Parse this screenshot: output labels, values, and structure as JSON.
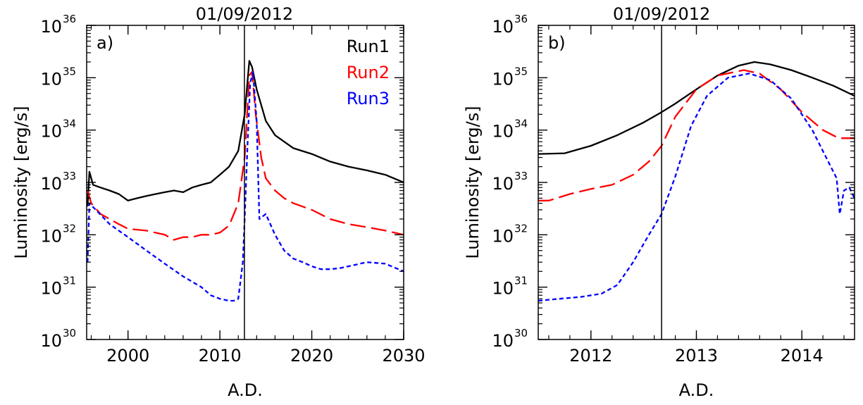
{
  "chart_data": [
    {
      "type": "line",
      "panel_label": "a)",
      "marker_label": "01/09/2012",
      "marker_x": 2012.67,
      "xlabel": "A.D.",
      "ylabel": "Luminosity  [erg/s]",
      "xlim": [
        1995.5,
        2030
      ],
      "ylim_log10": [
        30,
        36
      ],
      "y_scale": "log",
      "xticks": [
        2000,
        2010,
        2020,
        2030
      ],
      "yticks_exp": [
        30,
        31,
        32,
        33,
        34,
        35,
        36
      ],
      "y_tick_base": "10",
      "legend_position": "top-right",
      "series": [
        {
          "name": "Run1",
          "color": "#000000",
          "dash": "solid",
          "x": [
            1995.6,
            1995.8,
            1996.2,
            1997,
            1998,
            1999,
            2000,
            2001,
            2002,
            2003,
            2004,
            2005,
            2006,
            2007,
            2008,
            2009,
            2010,
            2011,
            2012,
            2012.7,
            2013.2,
            2013.5,
            2014,
            2015,
            2016,
            2017,
            2018,
            2020,
            2022,
            2024,
            2026,
            2028,
            2030
          ],
          "y": [
            3.5e+32,
            1.6e+33,
            9e+32,
            8e+32,
            7e+32,
            6e+32,
            4.5e+32,
            5e+32,
            5.5e+32,
            6e+32,
            6.5e+32,
            7e+32,
            6.5e+32,
            8e+32,
            9e+32,
            1e+33,
            1.4e+33,
            2e+33,
            4e+33,
            2e+34,
            2.1e+35,
            1.6e+35,
            6e+34,
            1.5e+34,
            8e+33,
            6e+33,
            4.5e+33,
            3.5e+33,
            2.5e+33,
            2e+33,
            1.7e+33,
            1.4e+33,
            1e+33
          ]
        },
        {
          "name": "Run2",
          "color": "#ff0000",
          "dash": "long-dash",
          "x": [
            1995.6,
            1996,
            1997,
            1998,
            1999,
            2000,
            2002,
            2004,
            2005,
            2006,
            2007,
            2008,
            2009,
            2010,
            2011,
            2012,
            2012.7,
            2013.2,
            2013.5,
            2013.9,
            2014.5,
            2015,
            2016,
            2017,
            2018,
            2020,
            2022,
            2024,
            2026,
            2028,
            2030
          ],
          "y": [
            7e+32,
            4e+32,
            2.5e+32,
            2e+32,
            1.6e+32,
            1.3e+32,
            1.2e+32,
            1e+32,
            8e+31,
            9e+31,
            9e+31,
            1e+32,
            1e+32,
            1.1e+32,
            1.5e+32,
            4e+32,
            3e+33,
            1.1e+35,
            1.3e+35,
            2e+34,
            3e+33,
            1.2e+33,
            7e+32,
            5e+32,
            4e+32,
            3e+32,
            2e+32,
            1.6e+32,
            1.4e+32,
            1.2e+32,
            1e+32
          ]
        },
        {
          "name": "Run3",
          "color": "#0000ff",
          "dash": "short-dash",
          "x": [
            1995.6,
            1995.8,
            1996.5,
            1998,
            2000,
            2002,
            2004,
            2006,
            2008,
            2009,
            2010,
            2011,
            2011.5,
            2012,
            2012.5,
            2012.7,
            2013,
            2013.3,
            2013.6,
            2014,
            2014.3,
            2015,
            2016,
            2017,
            2018,
            2019,
            2020,
            2021,
            2022,
            2023,
            2024,
            2026,
            2028,
            2030
          ],
          "y": [
            3e+31,
            4e+32,
            3e+32,
            1.6e+32,
            9e+31,
            5e+31,
            2.8e+31,
            1.6e+31,
            1e+31,
            7e+30,
            6e+30,
            5.5e+30,
            5.5e+30,
            6e+30,
            3e+31,
            2e+32,
            5e+33,
            8e+34,
            1.3e+35,
            1.5e+34,
            2e+32,
            2.5e+32,
            1e+32,
            5e+31,
            3.5e+31,
            3e+31,
            2.5e+31,
            2.2e+31,
            2.2e+31,
            2.3e+31,
            2.5e+31,
            3e+31,
            2.8e+31,
            2e+31
          ]
        }
      ]
    },
    {
      "type": "line",
      "panel_label": "b)",
      "marker_label": "01/09/2012",
      "marker_x": 2012.67,
      "xlabel": "A.D.",
      "ylabel": "Luminosity  [erg/s]",
      "xlim": [
        2011.5,
        2014.5
      ],
      "ylim_log10": [
        30,
        36
      ],
      "y_scale": "log",
      "xticks": [
        2012,
        2013,
        2014
      ],
      "yticks_exp": [
        30,
        31,
        32,
        33,
        34,
        35,
        36
      ],
      "y_tick_base": "10",
      "series": [
        {
          "name": "Run1",
          "color": "#000000",
          "dash": "solid",
          "x": [
            2011.5,
            2011.75,
            2012,
            2012.25,
            2012.5,
            2012.67,
            2012.8,
            2013,
            2013.2,
            2013.4,
            2013.55,
            2013.7,
            2013.9,
            2014.1,
            2014.3,
            2014.5
          ],
          "y": [
            3.5e+33,
            3.6e+33,
            5e+33,
            8e+33,
            1.4e+34,
            2.2e+34,
            3.2e+34,
            6e+34,
            1.1e+35,
            1.7e+35,
            2e+35,
            1.8e+35,
            1.4e+35,
            1e+35,
            7e+34,
            4.5e+34
          ]
        },
        {
          "name": "Run2",
          "color": "#ff0000",
          "dash": "long-dash",
          "x": [
            2011.5,
            2011.6,
            2011.8,
            2012,
            2012.2,
            2012.4,
            2012.55,
            2012.67,
            2012.8,
            2013,
            2013.2,
            2013.45,
            2013.6,
            2013.8,
            2014,
            2014.2,
            2014.35,
            2014.5
          ],
          "y": [
            4.5e+32,
            4.5e+32,
            6e+32,
            7.5e+32,
            9e+32,
            1.4e+33,
            2.5e+33,
            5e+33,
            1.8e+34,
            6e+34,
            1.1e+35,
            1.4e+35,
            1.2e+35,
            6e+34,
            2.2e+34,
            1e+34,
            7e+33,
            7e+33
          ]
        },
        {
          "name": "Run3",
          "color": "#0000ff",
          "dash": "short-dash",
          "x": [
            2011.5,
            2011.7,
            2011.9,
            2012.1,
            2012.25,
            2012.4,
            2012.55,
            2012.67,
            2012.8,
            2012.95,
            2013.1,
            2013.3,
            2013.5,
            2013.7,
            2013.9,
            2014.1,
            2014.33,
            2014.36,
            2014.4,
            2014.45,
            2014.5
          ],
          "y": [
            5.5e+30,
            6e+30,
            6.5e+30,
            7.5e+30,
            1.1e+31,
            3e+31,
            1e+32,
            2.5e+32,
            1.3e+33,
            1.2e+34,
            4.5e+34,
            1e+35,
            1.2e+35,
            9e+34,
            4e+34,
            1e+34,
            1.2e+33,
            2.5e+32,
            7e+32,
            8e+32,
            5e+32
          ]
        }
      ]
    }
  ]
}
